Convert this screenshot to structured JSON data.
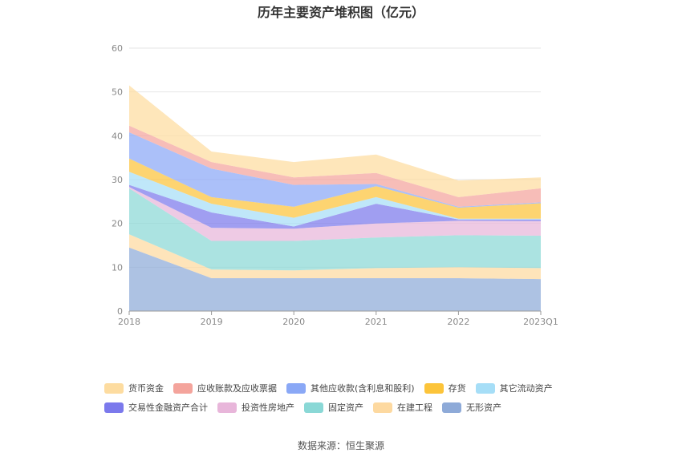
{
  "source_text": "数据来源：恒生聚源",
  "chart_data": {
    "type": "area",
    "title": "历年主要资产堆积图（亿元）",
    "xlabel": "",
    "ylabel": "",
    "categories": [
      "2018",
      "2019",
      "2020",
      "2021",
      "2022",
      "2023Q1"
    ],
    "ylim": [
      0,
      60
    ],
    "yticks": [
      0,
      10,
      20,
      30,
      40,
      50,
      60
    ],
    "grid": true,
    "legend_position": "bottom",
    "series": [
      {
        "name": "无形资产",
        "color": "#8eaad8",
        "values": [
          14.5,
          7.5,
          7.5,
          7.5,
          7.5,
          7.3
        ]
      },
      {
        "name": "在建工程",
        "color": "#fdd9a0",
        "values": [
          3.0,
          2.0,
          1.8,
          2.3,
          2.5,
          2.5
        ]
      },
      {
        "name": "固定资产",
        "color": "#8ad8d6",
        "values": [
          10.5,
          6.5,
          6.7,
          7.0,
          7.3,
          7.4
        ]
      },
      {
        "name": "投资性房地产",
        "color": "#e8b6da",
        "values": [
          0.3,
          3.0,
          2.8,
          3.2,
          3.3,
          3.3
        ]
      },
      {
        "name": "交易性金融资产合计",
        "color": "#7b79ec",
        "values": [
          0.5,
          3.5,
          0.5,
          4.5,
          0.3,
          0.4
        ]
      },
      {
        "name": "其它流动资产",
        "color": "#a6def7",
        "values": [
          3.0,
          2.0,
          2.0,
          1.5,
          0.2,
          0.2
        ]
      },
      {
        "name": "存货",
        "color": "#fcc43a",
        "values": [
          3.0,
          1.5,
          2.5,
          2.5,
          2.5,
          3.5
        ]
      },
      {
        "name": "其他应收款(含利息和股利)",
        "color": "#8aa8f6",
        "values": [
          6.0,
          6.5,
          5.0,
          0.5,
          0.2,
          0.2
        ]
      },
      {
        "name": "应收账款及应收票据",
        "color": "#f4a49c",
        "values": [
          1.5,
          1.5,
          1.7,
          2.5,
          2.2,
          3.2
        ]
      },
      {
        "name": "货币资金",
        "color": "#fddca0",
        "values": [
          9.2,
          2.4,
          3.5,
          4.2,
          3.8,
          2.5
        ]
      }
    ],
    "legend_rows": [
      [
        "货币资金",
        "应收账款及应收票据",
        "其他应收款(含利息和股利)",
        "存货",
        "其它流动资产"
      ],
      [
        "交易性金融资产合计",
        "投资性房地产",
        "固定资产",
        "在建工程",
        "无形资产"
      ]
    ]
  }
}
